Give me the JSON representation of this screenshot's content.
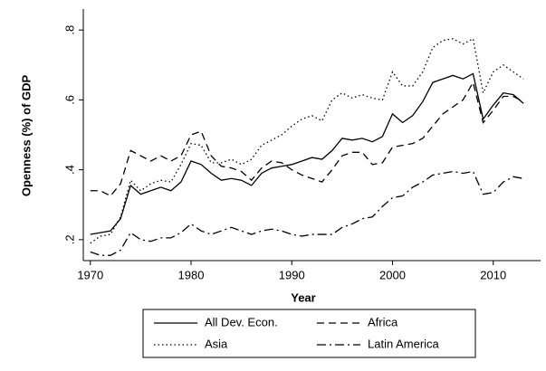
{
  "chart_data": {
    "type": "line",
    "x_label": "Year",
    "y_label": "Openness (%) of GDP",
    "x": [
      1970,
      1971,
      1972,
      1973,
      1974,
      1975,
      1976,
      1977,
      1978,
      1979,
      1980,
      1981,
      1982,
      1983,
      1984,
      1985,
      1986,
      1987,
      1988,
      1989,
      1990,
      1991,
      1992,
      1993,
      1994,
      1995,
      1996,
      1997,
      1998,
      1999,
      2000,
      2001,
      2002,
      2003,
      2004,
      2005,
      2006,
      2007,
      2008,
      2009,
      2010,
      2011,
      2012,
      2013
    ],
    "series": [
      {
        "name": "All Dev. Econ.",
        "color": "#000000",
        "line_style": "solid",
        "values": [
          0.215,
          0.22,
          0.225,
          0.26,
          0.355,
          0.33,
          0.34,
          0.35,
          0.34,
          0.365,
          0.425,
          0.415,
          0.39,
          0.37,
          0.375,
          0.37,
          0.355,
          0.39,
          0.405,
          0.41,
          0.415,
          0.425,
          0.435,
          0.43,
          0.455,
          0.49,
          0.485,
          0.49,
          0.48,
          0.495,
          0.56,
          0.535,
          0.555,
          0.595,
          0.65,
          0.66,
          0.67,
          0.66,
          0.675,
          0.545,
          0.585,
          0.62,
          0.615,
          0.59
        ]
      },
      {
        "name": "Africa",
        "color": "#000000",
        "line_style": "dashed",
        "values": [
          0.34,
          0.34,
          0.325,
          0.36,
          0.455,
          0.44,
          0.425,
          0.44,
          0.425,
          0.44,
          0.5,
          0.51,
          0.44,
          0.41,
          0.405,
          0.395,
          0.37,
          0.405,
          0.425,
          0.42,
          0.4,
          0.385,
          0.375,
          0.365,
          0.4,
          0.44,
          0.45,
          0.45,
          0.415,
          0.42,
          0.465,
          0.47,
          0.475,
          0.49,
          0.525,
          0.56,
          0.58,
          0.6,
          0.65,
          0.535,
          0.57,
          0.61,
          0.61,
          0.595
        ]
      },
      {
        "name": "Asia",
        "color": "#000000",
        "line_style": "dotted",
        "values": [
          0.19,
          0.21,
          0.215,
          0.265,
          0.37,
          0.34,
          0.36,
          0.37,
          0.365,
          0.415,
          0.475,
          0.47,
          0.42,
          0.42,
          0.43,
          0.415,
          0.43,
          0.47,
          0.485,
          0.5,
          0.525,
          0.545,
          0.555,
          0.54,
          0.6,
          0.62,
          0.605,
          0.615,
          0.605,
          0.6,
          0.68,
          0.64,
          0.64,
          0.68,
          0.75,
          0.77,
          0.775,
          0.76,
          0.775,
          0.62,
          0.68,
          0.7,
          0.68,
          0.66
        ]
      },
      {
        "name": "Latin America",
        "color": "#000000",
        "line_style": "dashdot",
        "values": [
          0.165,
          0.155,
          0.155,
          0.17,
          0.22,
          0.2,
          0.195,
          0.205,
          0.205,
          0.22,
          0.245,
          0.225,
          0.215,
          0.225,
          0.235,
          0.225,
          0.215,
          0.225,
          0.23,
          0.225,
          0.215,
          0.21,
          0.215,
          0.215,
          0.215,
          0.235,
          0.245,
          0.26,
          0.265,
          0.295,
          0.32,
          0.325,
          0.35,
          0.365,
          0.385,
          0.39,
          0.395,
          0.39,
          0.395,
          0.33,
          0.335,
          0.365,
          0.38,
          0.375
        ]
      }
    ],
    "xlim": [
      1969.3,
      2014.7
    ],
    "xticks": [
      1970,
      1980,
      1990,
      2000,
      2010
    ],
    "ylim": [
      0.14,
      0.86
    ],
    "yticks": [
      {
        "value": 0.2,
        "label": ".2"
      },
      {
        "value": 0.4,
        "label": ".4"
      },
      {
        "value": 0.6,
        "label": ".6"
      },
      {
        "value": 0.8,
        "label": ".8"
      }
    ],
    "grid": false,
    "legend_position": "bottom"
  }
}
